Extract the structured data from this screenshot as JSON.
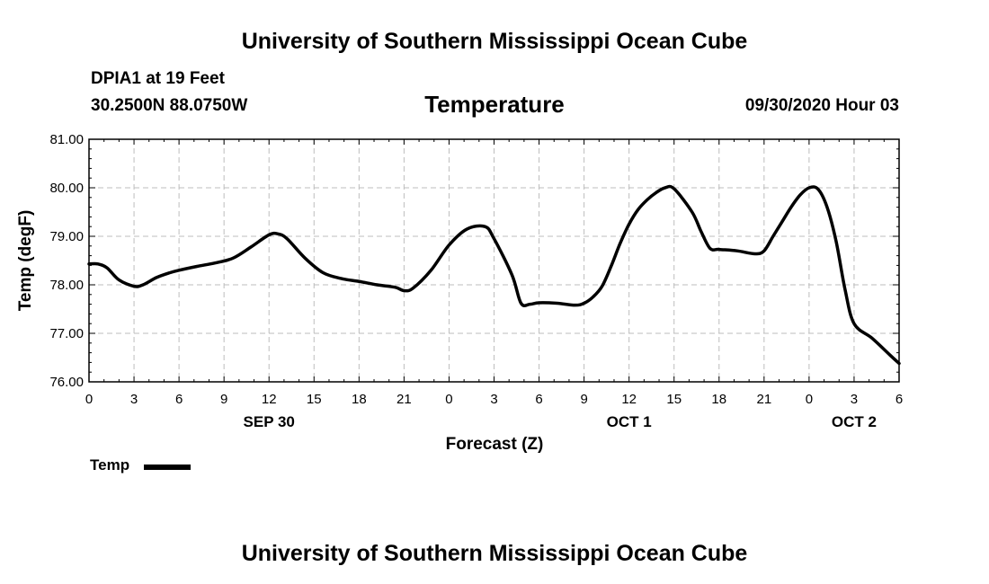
{
  "header": {
    "title": "University of Southern Mississippi Ocean Cube",
    "station": "DPIA1 at 19 Feet",
    "location": "30.2500N 88.0750W",
    "variable": "Temperature",
    "timestamp": "09/30/2020 Hour 03"
  },
  "footer": {
    "title": "University of Southern Mississippi Ocean Cube"
  },
  "legend": {
    "label": "Temp"
  },
  "chart_data": {
    "type": "line",
    "title": "Temperature",
    "xlabel": "Forecast (Z)",
    "ylabel": "Temp (degF)",
    "ylim": [
      76.0,
      81.0
    ],
    "xlim": [
      0,
      54
    ],
    "grid": true,
    "legend_position": "bottom-left",
    "y_ticks": [
      "76.00",
      "77.00",
      "78.00",
      "79.00",
      "80.00",
      "81.00"
    ],
    "y_tick_values": [
      76,
      77,
      78,
      79,
      80,
      81
    ],
    "x_tick_hours": [
      0,
      3,
      6,
      9,
      12,
      15,
      18,
      21,
      24,
      27,
      30,
      33,
      36,
      39,
      42,
      45,
      48,
      51,
      54
    ],
    "x_tick_labels": [
      "0",
      "3",
      "6",
      "9",
      "12",
      "15",
      "18",
      "21",
      "0",
      "3",
      "6",
      "9",
      "12",
      "15",
      "18",
      "21",
      "0",
      "3",
      "6"
    ],
    "date_labels": [
      {
        "hour": 12,
        "label": "SEP 30"
      },
      {
        "hour": 36,
        "label": "OCT 1"
      },
      {
        "hour": 51,
        "label": "OCT 2"
      }
    ],
    "series": [
      {
        "name": "Temp",
        "color": "#000000",
        "x": [
          0,
          0.6,
          1.2,
          2,
          3,
          3.6,
          4.5,
          5.4,
          6,
          7.2,
          8.4,
          9.6,
          10.8,
          12,
          12.6,
          13.2,
          14.4,
          15.6,
          16.8,
          18,
          19.2,
          20.4,
          21,
          21.6,
          22.8,
          24,
          25.2,
          26.4,
          27,
          28.2,
          28.8,
          29.4,
          30,
          31.2,
          32.4,
          33,
          33.6,
          34.2,
          34.8,
          35.4,
          36,
          36.6,
          37.2,
          37.8,
          38.4,
          39,
          40.2,
          40.8,
          41.4,
          42,
          43.2,
          44.4,
          45,
          45.6,
          46.2,
          46.8,
          47.4,
          48,
          48.6,
          49.2,
          49.8,
          50.4,
          51,
          52.2,
          53.4,
          54
        ],
        "y": [
          78.43,
          78.43,
          78.35,
          78.1,
          77.97,
          78.0,
          78.15,
          78.25,
          78.3,
          78.38,
          78.45,
          78.55,
          78.78,
          79.03,
          79.05,
          78.95,
          78.55,
          78.25,
          78.13,
          78.07,
          78.0,
          77.95,
          77.88,
          77.93,
          78.3,
          78.82,
          79.15,
          79.2,
          78.95,
          78.2,
          77.62,
          77.6,
          77.63,
          77.62,
          77.58,
          77.62,
          77.75,
          77.97,
          78.38,
          78.85,
          79.25,
          79.55,
          79.75,
          79.9,
          80.0,
          79.98,
          79.5,
          79.1,
          78.75,
          78.73,
          78.7,
          78.64,
          78.7,
          79.0,
          79.3,
          79.6,
          79.85,
          80.0,
          79.97,
          79.6,
          78.9,
          77.9,
          77.2,
          76.9,
          76.55,
          76.38
        ]
      }
    ]
  }
}
